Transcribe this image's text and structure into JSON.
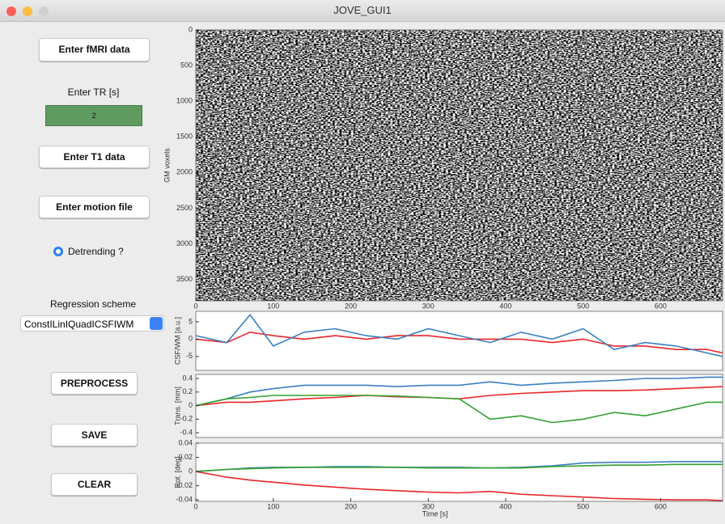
{
  "window": {
    "title": "JOVE_GUI1"
  },
  "controls": {
    "fmri_button": "Enter fMRI data",
    "tr_label": "Enter TR [s]",
    "tr_value": "2",
    "t1_button": "Enter T1 data",
    "motion_button": "Enter motion file",
    "detrend_label": "Detrending ?",
    "regression_label": "Regression scheme",
    "regression_value": "ConstILinIQuadICSFIWM",
    "preprocess_button": "PREPROCESS",
    "save_button": "SAVE",
    "clear_button": "CLEAR"
  },
  "plots": [
    {
      "type": "image",
      "ylabel": "GM voxels",
      "xlim": [
        0,
        680
      ],
      "ylim": [
        3800,
        0
      ],
      "xticks": [
        0,
        100,
        200,
        300,
        400,
        500,
        600
      ],
      "yticks": [
        0,
        500,
        1000,
        1500,
        2000,
        2500,
        3000,
        3500
      ]
    },
    {
      "type": "line",
      "ylabel": "CSF/WM [a.u.]",
      "xlim": [
        0,
        680
      ],
      "ylim": [
        -9,
        8
      ],
      "yticks": [
        -5,
        0,
        5
      ],
      "x": [
        0,
        40,
        70,
        100,
        140,
        180,
        220,
        260,
        300,
        340,
        380,
        420,
        460,
        500,
        540,
        580,
        620,
        660,
        680
      ],
      "series": [
        {
          "color": "#e8262a",
          "values": [
            0,
            -1,
            2,
            1,
            0,
            1,
            0,
            1,
            1,
            0,
            0,
            0,
            -1,
            0,
            -2,
            -2,
            -3,
            -3,
            -4
          ]
        },
        {
          "color": "#3a7fc1",
          "values": [
            1,
            -1,
            7,
            -2,
            2,
            3,
            1,
            0,
            3,
            1,
            -1,
            2,
            0,
            3,
            -3,
            -1,
            -2,
            -4,
            -5
          ]
        }
      ]
    },
    {
      "type": "line",
      "ylabel": "Trans. [mm]",
      "xlim": [
        0,
        680
      ],
      "ylim": [
        -0.47,
        0.46
      ],
      "yticks": [
        -0.4,
        -0.2,
        0,
        0.2,
        0.4
      ],
      "x": [
        0,
        40,
        70,
        100,
        140,
        180,
        220,
        260,
        300,
        340,
        380,
        420,
        460,
        500,
        540,
        580,
        620,
        660,
        680
      ],
      "series": [
        {
          "color": "#3a7fc1",
          "values": [
            0,
            0.1,
            0.2,
            0.25,
            0.3,
            0.3,
            0.3,
            0.28,
            0.3,
            0.3,
            0.35,
            0.3,
            0.33,
            0.35,
            0.37,
            0.4,
            0.4,
            0.42,
            0.42
          ]
        },
        {
          "color": "#e8262a",
          "values": [
            0,
            0.05,
            0.05,
            0.07,
            0.1,
            0.12,
            0.15,
            0.13,
            0.12,
            0.1,
            0.15,
            0.18,
            0.2,
            0.22,
            0.22,
            0.23,
            0.25,
            0.27,
            0.28
          ]
        },
        {
          "color": "#33a02c",
          "values": [
            0,
            0.1,
            0.12,
            0.15,
            0.15,
            0.15,
            0.15,
            0.14,
            0.12,
            0.1,
            -0.2,
            -0.15,
            -0.25,
            -0.2,
            -0.1,
            -0.15,
            -0.05,
            0.05,
            0.05
          ]
        }
      ]
    },
    {
      "type": "line",
      "ylabel": "Rot. [deg]",
      "xlabel": "Time [s]",
      "xlim": [
        0,
        680
      ],
      "ylim": [
        -0.042,
        0.04
      ],
      "xticks": [
        0,
        100,
        200,
        300,
        400,
        500,
        600
      ],
      "yticks": [
        -0.04,
        -0.02,
        0,
        0.02,
        0.04
      ],
      "x": [
        0,
        40,
        70,
        100,
        140,
        180,
        220,
        260,
        300,
        340,
        380,
        420,
        460,
        500,
        540,
        580,
        620,
        660,
        680
      ],
      "series": [
        {
          "color": "#3a7fc1",
          "values": [
            0,
            0.003,
            0.005,
            0.006,
            0.006,
            0.007,
            0.007,
            0.006,
            0.006,
            0.006,
            0.005,
            0.006,
            0.008,
            0.012,
            0.013,
            0.013,
            0.014,
            0.014,
            0.014
          ]
        },
        {
          "color": "#33a02c",
          "values": [
            0,
            0.003,
            0.004,
            0.005,
            0.006,
            0.006,
            0.006,
            0.006,
            0.005,
            0.005,
            0.005,
            0.005,
            0.007,
            0.008,
            0.009,
            0.009,
            0.01,
            0.01,
            0.01
          ]
        },
        {
          "color": "#e8262a",
          "values": [
            0,
            -0.008,
            -0.012,
            -0.015,
            -0.019,
            -0.022,
            -0.025,
            -0.027,
            -0.029,
            -0.03,
            -0.028,
            -0.032,
            -0.034,
            -0.036,
            -0.038,
            -0.039,
            -0.04,
            -0.04,
            -0.041
          ]
        }
      ]
    }
  ]
}
